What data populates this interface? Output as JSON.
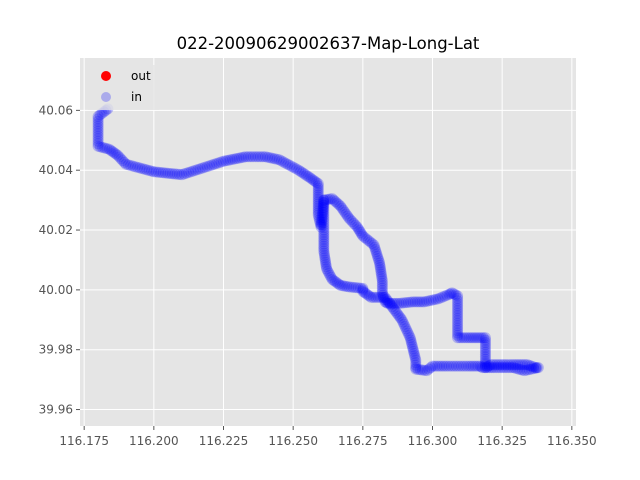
{
  "chart_data": {
    "type": "scatter",
    "title": "022-20090629002637-Map-Long-Lat",
    "xlabel": "",
    "ylabel": "",
    "xlim": [
      116.1735,
      116.3515
    ],
    "ylim": [
      39.9545,
      40.0775
    ],
    "x_ticks": [
      116.175,
      116.2,
      116.225,
      116.25,
      116.275,
      116.3,
      116.325,
      116.35
    ],
    "x_tick_labels": [
      "116.175",
      "116.200",
      "116.225",
      "116.250",
      "116.275",
      "116.300",
      "116.325",
      "116.350"
    ],
    "y_ticks": [
      39.96,
      39.98,
      40.0,
      40.02,
      40.04,
      40.06
    ],
    "y_tick_labels": [
      "39.96",
      "39.98",
      "40.00",
      "40.02",
      "40.04",
      "40.06"
    ],
    "grid": true,
    "legend_position": "top-left",
    "colors": {
      "out": "#ff0000",
      "in": "#0000ff",
      "plot_bg": "#e5e5e5",
      "grid": "#ffffff"
    },
    "series": [
      {
        "name": "out",
        "color": "#ff0000",
        "x": [],
        "y": []
      },
      {
        "name": "in",
        "color": "#0000ff",
        "x": [
          116.1835,
          116.18,
          116.18,
          116.184,
          116.187,
          116.19,
          116.2,
          116.205,
          116.21,
          116.215,
          116.225,
          116.233,
          116.24,
          116.245,
          116.252,
          116.256,
          116.259,
          116.259,
          116.259,
          116.26,
          116.261,
          116.264,
          116.267,
          116.27,
          116.273,
          116.275,
          116.279,
          116.281,
          116.282,
          116.282,
          116.283,
          116.284,
          116.288,
          116.293,
          116.297,
          116.302,
          116.306,
          116.307,
          116.309,
          116.309,
          116.309,
          116.309,
          116.313,
          116.316,
          116.319,
          116.319,
          116.319,
          116.319,
          116.321,
          116.329,
          116.334,
          116.337,
          116.338,
          116.333,
          116.329,
          116.322,
          116.318,
          116.317,
          116.313,
          116.305,
          116.3,
          116.298,
          116.294,
          116.294,
          116.294,
          116.292,
          116.289,
          116.285,
          116.283,
          116.278,
          116.275,
          116.275,
          116.27,
          116.267,
          116.264,
          116.262,
          116.261,
          116.261,
          116.261,
          116.261
        ],
        "y": [
          40.0605,
          40.058,
          40.048,
          40.047,
          40.045,
          40.042,
          40.0395,
          40.039,
          40.0385,
          40.04,
          40.043,
          40.0445,
          40.0445,
          40.0435,
          40.04,
          40.0375,
          40.0355,
          40.031,
          40.025,
          40.021,
          40.03,
          40.0305,
          40.028,
          40.024,
          40.021,
          40.018,
          40.015,
          40.009,
          40.003,
          39.999,
          39.996,
          39.9955,
          39.9955,
          39.996,
          39.996,
          39.997,
          39.9985,
          39.999,
          39.998,
          39.993,
          39.988,
          39.984,
          39.984,
          39.984,
          39.984,
          39.98,
          39.976,
          39.974,
          39.975,
          39.975,
          39.975,
          39.974,
          39.974,
          39.973,
          39.974,
          39.974,
          39.974,
          39.9745,
          39.9745,
          39.9745,
          39.9745,
          39.973,
          39.9735,
          39.974,
          39.9765,
          39.984,
          39.99,
          39.995,
          39.9975,
          39.9975,
          39.9995,
          40.0005,
          40.001,
          40.0015,
          40.0035,
          40.007,
          40.013,
          40.02,
          40.025,
          40.03
        ]
      }
    ]
  }
}
